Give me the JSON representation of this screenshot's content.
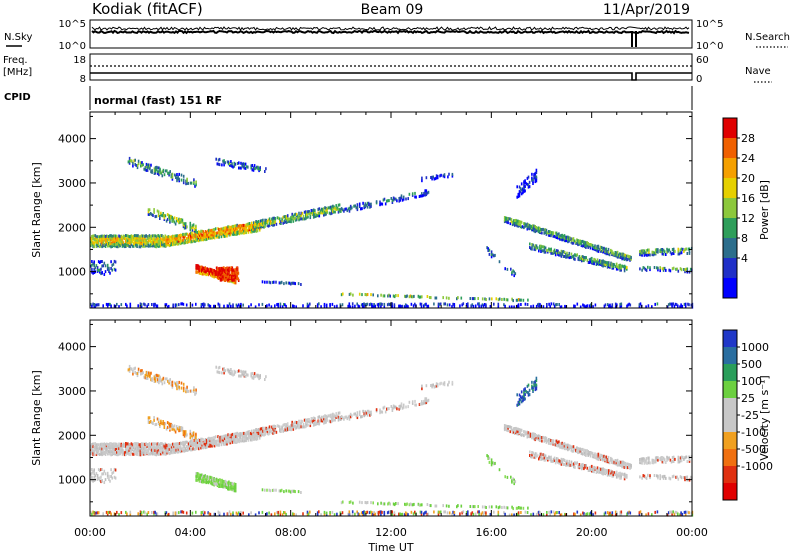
{
  "header": {
    "title": "Kodiak (fitACF)",
    "beam": "Beam 09",
    "date": "11/Apr/2019"
  },
  "top_panels": {
    "nsky_label": "N.Sky",
    "nsky_hi": "10^5",
    "nsky_lo": "10^0",
    "nsearch_label": "N.Search",
    "nsearch_hi": "10^5",
    "nsearch_lo": "10^0",
    "freq_label_1": "Freq.",
    "freq_label_2": "[MHz]",
    "freq_hi": "18",
    "freq_lo": "8",
    "nave_label": "Nave",
    "nave_hi": "60",
    "nave_lo": "0",
    "cpid_label": "CPID",
    "cpid_value": "normal (fast) 151 RF"
  },
  "chart_data": [
    {
      "type": "heatmap",
      "title": "",
      "ylabel": "Slant Range [km]",
      "xlabel": "",
      "x_ticks": [
        "00:00",
        "04:00",
        "08:00",
        "12:00",
        "16:00",
        "20:00",
        "00:00"
      ],
      "xlim_hours": [
        0,
        24
      ],
      "y_ticks": [
        1000,
        2000,
        3000,
        4000
      ],
      "ylim": [
        180,
        4600
      ],
      "colorbar": {
        "label": "Power [dB]",
        "ticks": [
          "28",
          "24",
          "20",
          "16",
          "12",
          "8",
          "4"
        ],
        "colors": [
          "#e00000",
          "#f06000",
          "#f5a000",
          "#e6d000",
          "#8cc83c",
          "#2e9e5a",
          "#2c6e8c",
          "#2030c8",
          "#0000ff"
        ]
      }
    },
    {
      "type": "heatmap",
      "title": "",
      "ylabel": "Slant Range [km]",
      "xlabel": "Time UT",
      "x_ticks": [
        "00:00",
        "04:00",
        "08:00",
        "12:00",
        "16:00",
        "20:00",
        "00:00"
      ],
      "xlim_hours": [
        0,
        24
      ],
      "y_ticks": [
        1000,
        2000,
        3000,
        4000
      ],
      "ylim": [
        180,
        4600
      ],
      "colorbar": {
        "label": "Velocity [m s⁻¹]",
        "ticks": [
          "1000",
          "500",
          "100",
          "25",
          "-25",
          "-100",
          "-500",
          "-1000"
        ],
        "colors": [
          "#2038c8",
          "#2a6ea0",
          "#2a9e5a",
          "#6cd040",
          "#c8c8c8",
          "#c8c8c8",
          "#f0a020",
          "#f07010",
          "#e03010",
          "#e00000"
        ]
      }
    }
  ]
}
